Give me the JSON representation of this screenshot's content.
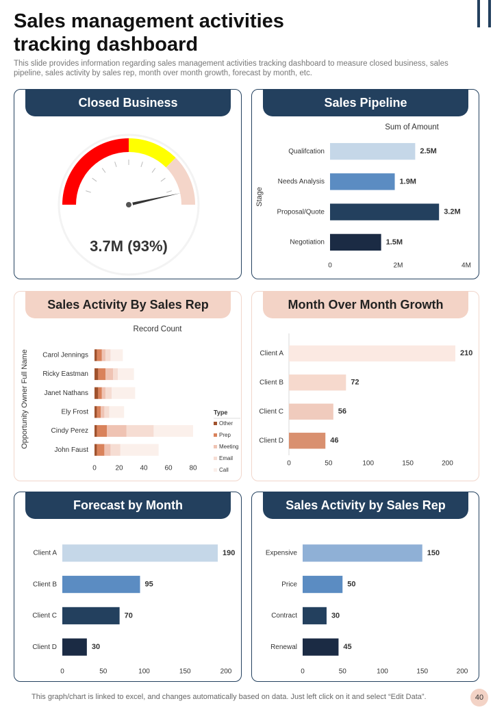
{
  "header": {
    "title": "Sales management activities tracking dashboard",
    "subtitle": "This slide provides information regarding sales management activities tracking dashboard to measure closed business, sales pipeline, sales activity by sales rep, month over month growth, forecast by month, etc."
  },
  "chart_data": [
    {
      "type": "gauge",
      "title": "Closed Business",
      "values": [
        93
      ],
      "value_labels": [
        "3.7M (93%)"
      ],
      "ylim": [
        0,
        100
      ],
      "ranges": [
        {
          "from": 0,
          "to": 50,
          "color": "#ff0000"
        },
        {
          "from": 50,
          "to": 75,
          "color": "#ffff00"
        },
        {
          "from": 75,
          "to": 100,
          "color": "#f4d5c9"
        }
      ]
    },
    {
      "type": "hbar",
      "title": "Sales Pipeline",
      "xlabel": "Sum of Amount",
      "ylabel": "Stage",
      "categories": [
        "Qualifcation",
        "Needs Analysis",
        "Proposal/Quote",
        "Negotiation"
      ],
      "values": [
        2.5,
        1.9,
        3.2,
        1.5
      ],
      "value_labels": [
        "2.5M",
        "1.9M",
        "3.2M",
        "1.5M"
      ],
      "colors": [
        "#c5d7e8",
        "#5b8cc2",
        "#23405e",
        "#1b2b44"
      ],
      "xlim": [
        0,
        4
      ],
      "xticks": [
        0,
        {
          "value": 2,
          "label": "2M"
        },
        {
          "value": 4,
          "label": "4M"
        }
      ]
    },
    {
      "type": "stacked_bar",
      "title": "Sales Activity By Sales Rep",
      "xlabel": "Record Count",
      "ylabel": "Opportunity Owner Full Name",
      "legend_title": "Type",
      "categories": [
        "Carol Jennings",
        "Ricky Eastman",
        "Janet Nathans",
        "Ely Frost",
        "Cindy Perez",
        "John Faust"
      ],
      "series": [
        {
          "name": "Other",
          "color": "#a0522d",
          "values": [
            2,
            3,
            3,
            2,
            2,
            2
          ]
        },
        {
          "name": "Prep",
          "color": "#d9825b",
          "values": [
            4,
            6,
            3,
            3,
            8,
            6
          ]
        },
        {
          "name": "Meeting",
          "color": "#efc3b3",
          "values": [
            3,
            6,
            3,
            3,
            16,
            5
          ]
        },
        {
          "name": "Email",
          "color": "#f6ddd3",
          "values": [
            4,
            4,
            5,
            4,
            22,
            8
          ]
        },
        {
          "name": "Call",
          "color": "#fbf0eb",
          "values": [
            10,
            13,
            19,
            12,
            32,
            31
          ]
        }
      ],
      "xlim": [
        0,
        80
      ],
      "xticks": [
        0,
        20,
        40,
        60,
        80
      ]
    },
    {
      "type": "hbar",
      "title": "Month Over Month Growth",
      "categories": [
        "Client A",
        "Client B",
        "Client C",
        "Client D"
      ],
      "values": [
        210,
        72,
        56,
        46
      ],
      "colors": [
        "#fbe9e2",
        "#f6d9cd",
        "#f0cbbd",
        "#d9906f"
      ],
      "xlim": [
        0,
        210
      ],
      "xticks": [
        0,
        50,
        100,
        150,
        200
      ]
    },
    {
      "type": "hbar",
      "title": "Forecast by Month",
      "categories": [
        "Client A",
        "Client B",
        "Client C",
        "Client D"
      ],
      "values": [
        190,
        95,
        70,
        30
      ],
      "colors": [
        "#c5d7e8",
        "#5b8cc2",
        "#23405e",
        "#1b2b44"
      ],
      "xlim": [
        0,
        200
      ],
      "xticks": [
        0,
        50,
        100,
        150,
        200
      ]
    },
    {
      "type": "hbar",
      "title": "Sales Activity by Sales Rep",
      "categories": [
        "Expensive",
        "Price",
        "Contract",
        "Renewal"
      ],
      "values": [
        150,
        50,
        30,
        45
      ],
      "colors": [
        "#8fb0d6",
        "#5b8cc2",
        "#23405e",
        "#1b2b44"
      ],
      "xlim": [
        0,
        200
      ],
      "xticks": [
        0,
        50,
        100,
        150,
        200
      ]
    }
  ],
  "footer": {
    "note": "This graph/chart is linked to excel, and changes automatically based on data. Just left click on it and select “Edit Data”.",
    "page": "40"
  }
}
